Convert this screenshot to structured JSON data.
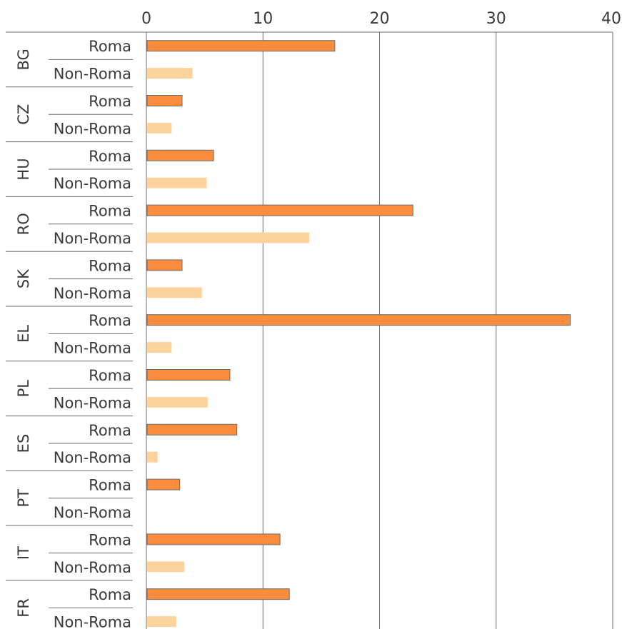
{
  "chart_data": {
    "type": "bar",
    "orientation": "horizontal",
    "xlim": [
      0,
      40
    ],
    "xticks": [
      "0",
      "10",
      "20",
      "30",
      "40"
    ],
    "grid": true,
    "colors": {
      "Roma": "#fb8c3b",
      "Non-Roma": "#fdd39d",
      "grid": "#6f6f6f"
    },
    "subcategories": [
      "Roma",
      "Non-Roma"
    ],
    "groups": [
      {
        "label": "BG",
        "Roma": 16.1,
        "Non-Roma": 3.9
      },
      {
        "label": "CZ",
        "Roma": 3.0,
        "Non-Roma": 2.1
      },
      {
        "label": "HU",
        "Roma": 5.7,
        "Non-Roma": 5.1
      },
      {
        "label": "RO",
        "Roma": 22.8,
        "Non-Roma": 13.9
      },
      {
        "label": "SK",
        "Roma": 3.0,
        "Non-Roma": 4.7
      },
      {
        "label": "EL",
        "Roma": 36.3,
        "Non-Roma": 2.1
      },
      {
        "label": "PL",
        "Roma": 7.1,
        "Non-Roma": 5.2
      },
      {
        "label": "ES",
        "Roma": 7.7,
        "Non-Roma": 0.9
      },
      {
        "label": "PT",
        "Roma": 2.8,
        "Non-Roma": null
      },
      {
        "label": "IT",
        "Roma": 11.4,
        "Non-Roma": 3.2
      },
      {
        "label": "FR",
        "Roma": 12.2,
        "Non-Roma": 2.5
      }
    ]
  }
}
